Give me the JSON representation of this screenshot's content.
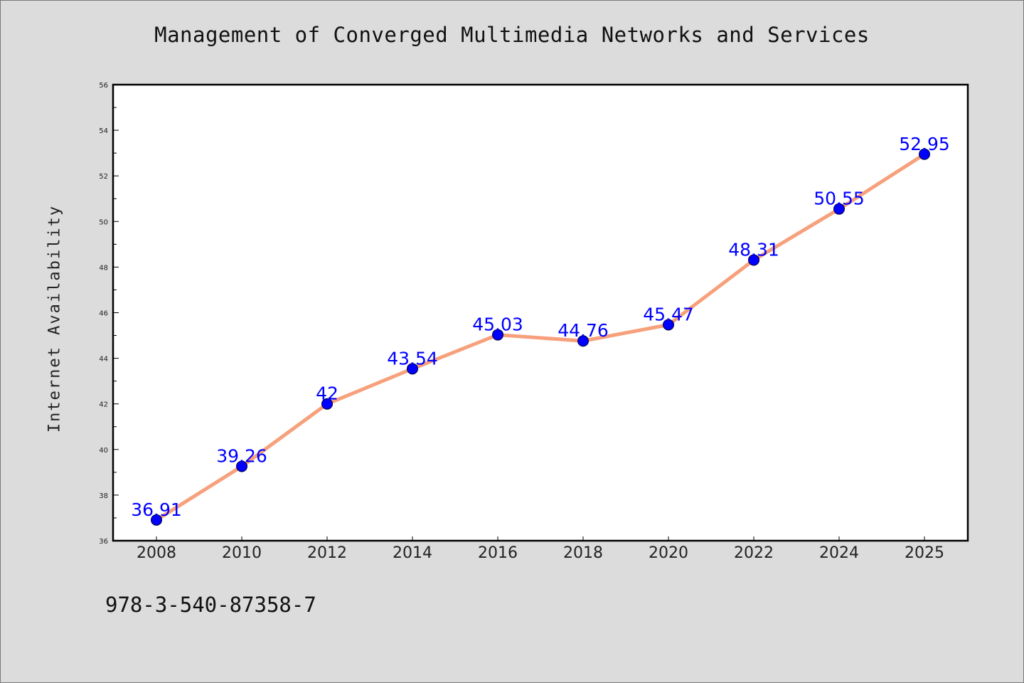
{
  "title": "Management of Converged Multimedia Networks and Services",
  "isbn": "978-3-540-87358-7",
  "colors": {
    "background": "#dcdcdc",
    "plot_background": "#ffffff",
    "line": "#f7a07c",
    "marker": "#0000ff",
    "data_label": "#0000ff"
  },
  "chart_data": {
    "type": "line",
    "title": "Management of Converged Multimedia Networks and Services",
    "xlabel": "",
    "ylabel": "Internet Availability",
    "categories": [
      "2008",
      "2010",
      "2012",
      "2014",
      "2016",
      "2018",
      "2020",
      "2022",
      "2024",
      "2025"
    ],
    "series": [
      {
        "values": [
          36.91,
          39.26,
          42,
          43.54,
          45.03,
          44.76,
          45.47,
          48.31,
          50.55,
          52.95
        ],
        "labels": [
          "36.91",
          "39.26",
          "42",
          "43.54",
          "45.03",
          "44.76",
          "45.47",
          "48.31",
          "50.55",
          "52.95"
        ]
      }
    ],
    "ylim": [
      36,
      56
    ],
    "yticks": [
      36,
      38,
      40,
      42,
      44,
      46,
      48,
      50,
      52,
      54,
      56
    ],
    "grid": false,
    "legend": "none"
  }
}
